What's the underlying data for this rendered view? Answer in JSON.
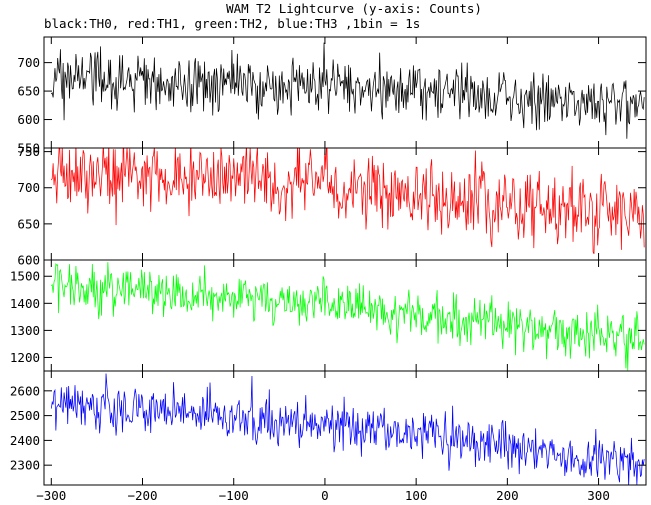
{
  "chart_data": {
    "type": "line",
    "title": "WAM T2 Lightcurve (y-axis: Counts)",
    "subtitle": "black:TH0, red:TH1, green:TH2, blue:TH3 ,1bin = 1s",
    "xlabel": "",
    "ylabel": "",
    "xlim": [
      -308,
      352
    ],
    "x_ticks": [
      -300,
      -200,
      -100,
      0,
      100,
      200,
      300
    ],
    "x_start": -300,
    "x_end": 350,
    "bin": 1,
    "grid": false,
    "panels": [
      {
        "name": "TH0",
        "color": "#000000",
        "ylim": [
          550,
          745
        ],
        "y_ticks": [
          550,
          600,
          650,
          700
        ],
        "trend": [
          [
            -300,
            665
          ],
          [
            0,
            660
          ],
          [
            350,
            625
          ]
        ],
        "noise": 26,
        "spikes": [
          [
            -1,
            735
          ],
          [
            -205,
            712
          ],
          [
            -252,
            718
          ],
          [
            150,
            700
          ]
        ]
      },
      {
        "name": "TH1",
        "color": "#ff0000",
        "ylim": [
          600,
          755
        ],
        "y_ticks": [
          600,
          650,
          700,
          750
        ],
        "trend": [
          [
            -300,
            720
          ],
          [
            0,
            705
          ],
          [
            350,
            660
          ]
        ],
        "noise": 26,
        "spikes": [
          [
            0,
            755
          ],
          [
            -265,
            752
          ],
          [
            -130,
            738
          ]
        ]
      },
      {
        "name": "TH2",
        "color": "#00ff00",
        "ylim": [
          1150,
          1560
        ],
        "y_ticks": [
          1200,
          1300,
          1400,
          1500
        ],
        "trend": [
          [
            -300,
            1470
          ],
          [
            0,
            1390
          ],
          [
            350,
            1270
          ]
        ],
        "noise": 45,
        "spikes": [
          [
            -295,
            1545
          ],
          [
            330,
            1160
          ]
        ]
      },
      {
        "name": "TH3",
        "color": "#0000ff",
        "ylim": [
          2220,
          2680
        ],
        "y_ticks": [
          2300,
          2400,
          2500,
          2600
        ],
        "trend": [
          [
            -300,
            2555
          ],
          [
            0,
            2470
          ],
          [
            350,
            2310
          ]
        ],
        "noise": 48,
        "spikes": [
          [
            -240,
            2670
          ],
          [
            -80,
            2660
          ],
          [
            -295,
            2440
          ]
        ]
      }
    ]
  }
}
